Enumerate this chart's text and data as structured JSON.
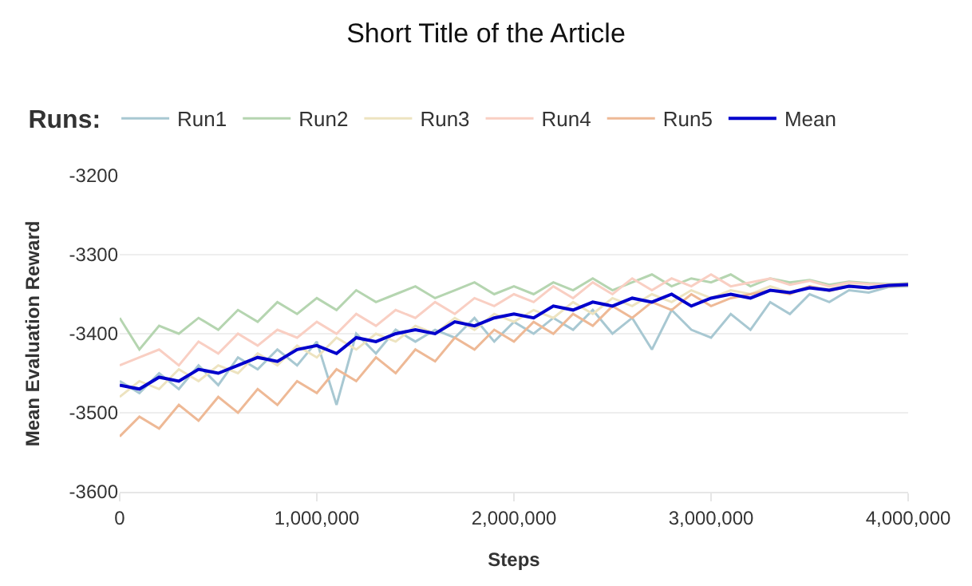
{
  "chart_data": {
    "type": "line",
    "title": "Short Title of the Article",
    "xlabel": "Steps",
    "ylabel": "Mean Evaluation Reward",
    "legend_title": "Runs:",
    "legend": "top left",
    "grid": "y",
    "xlim": [
      0,
      4000000
    ],
    "xticks": [
      {
        "value": 0,
        "label": "0"
      },
      {
        "value": 1000000,
        "label": "1,000,000"
      },
      {
        "value": 2000000,
        "label": "2,000,000"
      },
      {
        "value": 3000000,
        "label": "3,000,000"
      },
      {
        "value": 4000000,
        "label": "4,000,000"
      }
    ],
    "ylim": [
      -3600,
      -3200
    ],
    "yticks": [
      -3600,
      -3500,
      -3400,
      -3300,
      -3200
    ],
    "x": [
      0,
      100000,
      200000,
      300000,
      400000,
      500000,
      600000,
      700000,
      800000,
      900000,
      1000000,
      1100000,
      1200000,
      1300000,
      1400000,
      1500000,
      1600000,
      1700000,
      1800000,
      1900000,
      2000000,
      2100000,
      2200000,
      2300000,
      2400000,
      2500000,
      2600000,
      2700000,
      2800000,
      2900000,
      3000000,
      3100000,
      3200000,
      3300000,
      3400000,
      3500000,
      3600000,
      3700000,
      3800000,
      3900000,
      4000000
    ],
    "series": [
      {
        "name": "Run1",
        "color": "#a8c8d2",
        "values": [
          -3460,
          -3475,
          -3450,
          -3470,
          -3440,
          -3465,
          -3430,
          -3445,
          -3420,
          -3440,
          -3410,
          -3490,
          -3400,
          -3425,
          -3395,
          -3410,
          -3395,
          -3405,
          -3380,
          -3410,
          -3385,
          -3400,
          -3380,
          -3395,
          -3370,
          -3400,
          -3380,
          -3420,
          -3370,
          -3395,
          -3405,
          -3375,
          -3395,
          -3360,
          -3375,
          -3350,
          -3360,
          -3345,
          -3348,
          -3341,
          -3340
        ]
      },
      {
        "name": "Run2",
        "color": "#b5d5b0",
        "values": [
          -3380,
          -3420,
          -3390,
          -3400,
          -3380,
          -3395,
          -3370,
          -3385,
          -3360,
          -3375,
          -3355,
          -3370,
          -3345,
          -3360,
          -3350,
          -3340,
          -3355,
          -3345,
          -3335,
          -3350,
          -3340,
          -3350,
          -3335,
          -3345,
          -3330,
          -3345,
          -3335,
          -3325,
          -3340,
          -3330,
          -3335,
          -3325,
          -3340,
          -3330,
          -3335,
          -3332,
          -3338,
          -3334,
          -3336,
          -3337,
          -3336
        ]
      },
      {
        "name": "Run3",
        "color": "#ede3c0",
        "values": [
          -3480,
          -3460,
          -3470,
          -3445,
          -3460,
          -3440,
          -3450,
          -3425,
          -3440,
          -3415,
          -3430,
          -3405,
          -3420,
          -3400,
          -3410,
          -3390,
          -3400,
          -3380,
          -3395,
          -3375,
          -3385,
          -3370,
          -3380,
          -3360,
          -3375,
          -3355,
          -3365,
          -3350,
          -3360,
          -3345,
          -3355,
          -3345,
          -3350,
          -3340,
          -3348,
          -3340,
          -3344,
          -3338,
          -3342,
          -3339,
          -3339
        ]
      },
      {
        "name": "Run4",
        "color": "#f9cfc3",
        "values": [
          -3440,
          -3430,
          -3420,
          -3440,
          -3410,
          -3425,
          -3400,
          -3415,
          -3395,
          -3405,
          -3385,
          -3400,
          -3375,
          -3390,
          -3370,
          -3380,
          -3360,
          -3375,
          -3355,
          -3365,
          -3350,
          -3360,
          -3340,
          -3355,
          -3335,
          -3350,
          -3330,
          -3345,
          -3330,
          -3340,
          -3325,
          -3340,
          -3335,
          -3330,
          -3338,
          -3333,
          -3340,
          -3335,
          -3337,
          -3338,
          -3337
        ]
      },
      {
        "name": "Run5",
        "color": "#eeb996",
        "values": [
          -3530,
          -3505,
          -3520,
          -3490,
          -3510,
          -3480,
          -3500,
          -3470,
          -3490,
          -3460,
          -3475,
          -3445,
          -3460,
          -3430,
          -3450,
          -3420,
          -3435,
          -3405,
          -3420,
          -3395,
          -3410,
          -3385,
          -3400,
          -3375,
          -3390,
          -3365,
          -3380,
          -3360,
          -3370,
          -3350,
          -3365,
          -3355,
          -3350,
          -3345,
          -3350,
          -3340,
          -3346,
          -3340,
          -3343,
          -3340,
          -3339
        ]
      },
      {
        "name": "Mean",
        "color": "#0000cc",
        "values": [
          -3465,
          -3470,
          -3455,
          -3460,
          -3445,
          -3450,
          -3440,
          -3430,
          -3435,
          -3420,
          -3415,
          -3425,
          -3405,
          -3410,
          -3400,
          -3395,
          -3400,
          -3385,
          -3390,
          -3380,
          -3375,
          -3380,
          -3365,
          -3370,
          -3360,
          -3365,
          -3355,
          -3360,
          -3350,
          -3365,
          -3355,
          -3350,
          -3355,
          -3345,
          -3348,
          -3342,
          -3345,
          -3340,
          -3342,
          -3339,
          -3338
        ]
      }
    ]
  }
}
